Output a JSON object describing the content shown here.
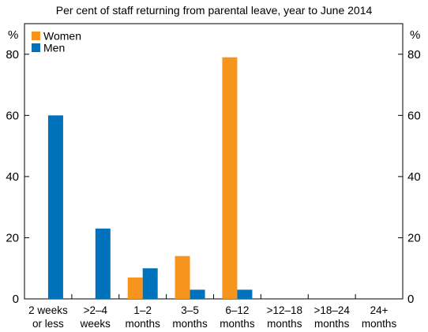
{
  "chart_data": {
    "type": "bar",
    "title": "Per cent of staff returning from parental leave, year to June 2014",
    "ylabel_left": "%",
    "ylabel_right": "%",
    "ylim": [
      0,
      90
    ],
    "yticks": [
      0,
      20,
      40,
      60,
      80
    ],
    "grid": false,
    "legend_position": "top-left",
    "categories": [
      [
        "2 weeks",
        "or less"
      ],
      [
        ">2–4",
        "weeks"
      ],
      [
        "1–2",
        "months"
      ],
      [
        "3–5",
        "months"
      ],
      [
        "6–12",
        "months"
      ],
      [
        ">12–18",
        "months"
      ],
      [
        ">18–24",
        "months"
      ],
      [
        "24+",
        "months"
      ]
    ],
    "series": [
      {
        "name": "Women",
        "color": "#f7941d",
        "values": [
          0,
          0,
          7,
          14,
          79,
          0,
          0,
          0
        ]
      },
      {
        "name": "Men",
        "color": "#0072bc",
        "values": [
          60,
          23,
          10,
          3,
          3,
          0,
          0,
          0
        ]
      }
    ]
  }
}
